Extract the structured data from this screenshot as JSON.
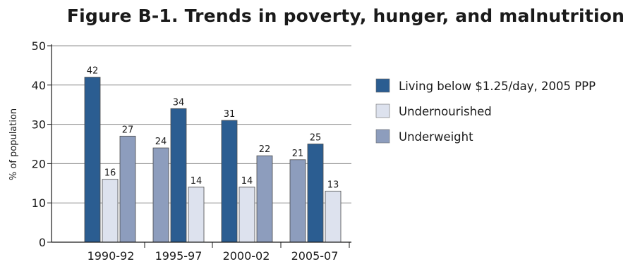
{
  "chart_data": {
    "type": "bar",
    "title": "Figure B-1. Trends in poverty, hunger, and malnutrition",
    "ylabel": "% of population",
    "xlabel": "",
    "ylim": [
      0,
      50
    ],
    "yticks": [
      0,
      10,
      20,
      30,
      40,
      50
    ],
    "grid": true,
    "legend_position": "right",
    "categories": [
      "1990-92",
      "1995-97",
      "2000-02",
      "2005-07"
    ],
    "series": [
      {
        "name": "Living below $1.25/day, 2005 PPP",
        "color": "#2b5d91"
      },
      {
        "name": "Undernourished",
        "color": "#dde2ee"
      },
      {
        "name": "Underweight",
        "color": "#8d9dbd"
      }
    ],
    "groups": [
      {
        "category": "1990-92",
        "order": [
          0,
          1,
          2
        ],
        "values": [
          42,
          16,
          27
        ]
      },
      {
        "category": "1995-97",
        "order": [
          2,
          0,
          1
        ],
        "values": [
          34,
          14,
          24
        ]
      },
      {
        "category": "2000-02",
        "order": [
          0,
          1,
          2
        ],
        "values": [
          31,
          14,
          22
        ]
      },
      {
        "category": "2005-07",
        "order": [
          2,
          0,
          1
        ],
        "values": [
          25,
          13,
          21
        ]
      }
    ]
  }
}
